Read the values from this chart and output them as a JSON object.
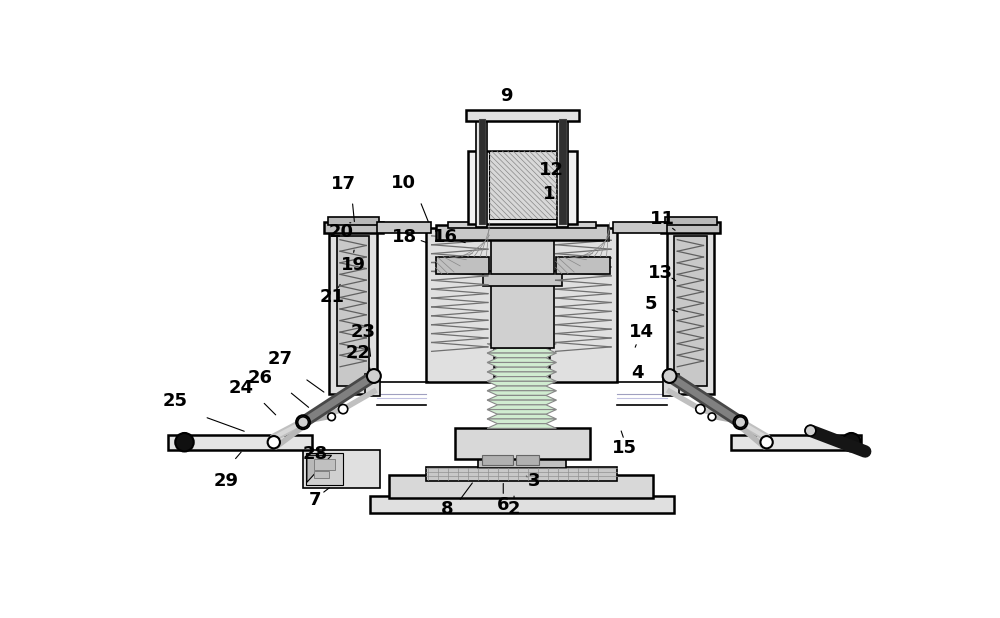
{
  "bg_color": "#ffffff",
  "lc": "#000000",
  "lw": 1.2,
  "lw2": 1.8
}
